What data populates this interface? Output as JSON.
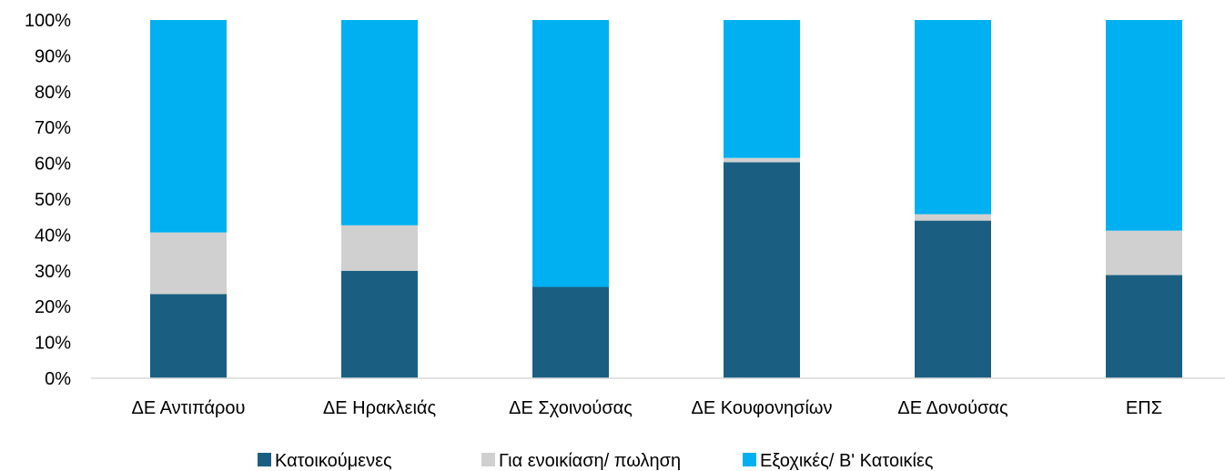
{
  "chart_data": {
    "type": "bar",
    "stacked": "percent",
    "categories": [
      "ΔΕ Αντιπάρου",
      "ΔΕ Ηρακλειάς",
      "ΔΕ Σχοινούσας",
      "ΔΕ Κουφονησίων",
      "ΔΕ Δονούσας",
      "ΕΠΣ"
    ],
    "series": [
      {
        "name": "Κατοικούμενες",
        "color": "#1a5f82",
        "values": [
          23.5,
          30.0,
          25.5,
          60.3,
          44.0,
          28.8
        ]
      },
      {
        "name": "Για ενοικίαση/ πωληση",
        "color": "#d0d0d0",
        "values": [
          17.2,
          12.7,
          0.0,
          1.2,
          1.8,
          12.4
        ]
      },
      {
        "name": "Εξοχικές/ Β' Κατοικίες",
        "color": "#00b0f0",
        "values": [
          59.3,
          57.3,
          74.5,
          38.5,
          54.2,
          58.8
        ]
      }
    ],
    "y_ticks": [
      "0%",
      "10%",
      "20%",
      "30%",
      "40%",
      "50%",
      "60%",
      "70%",
      "80%",
      "90%",
      "100%"
    ],
    "ylim": [
      0,
      100
    ],
    "grid": false,
    "legend_position": "bottom",
    "title": "",
    "xlabel": "",
    "ylabel": ""
  }
}
